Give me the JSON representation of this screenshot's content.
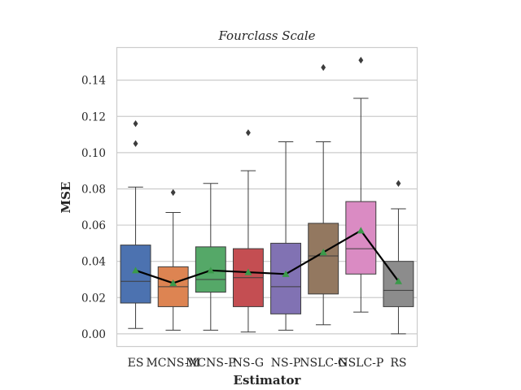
{
  "chart_data": {
    "type": "box",
    "title": "Fourclass Scale",
    "xlabel": "Estimator",
    "ylabel": "MSE",
    "ylim": [
      -0.007,
      0.158
    ],
    "yticks": [
      0.0,
      0.02,
      0.04,
      0.06,
      0.08,
      0.1,
      0.12,
      0.14
    ],
    "ytick_labels": [
      "0.00",
      "0.02",
      "0.04",
      "0.06",
      "0.08",
      "0.10",
      "0.12",
      "0.14"
    ],
    "grid": true,
    "categories": [
      "ES",
      "MCNS-M",
      "MCNS-P",
      "NS-G",
      "NS-P",
      "NSLC-G",
      "NSLC-P",
      "RS"
    ],
    "boxes": [
      {
        "label": "ES",
        "whisker_low": 0.003,
        "q1": 0.017,
        "median": 0.029,
        "q3": 0.049,
        "whisker_high": 0.081,
        "mean": 0.035,
        "outliers": [
          0.105,
          0.116
        ],
        "color": "#4c72b0"
      },
      {
        "label": "MCNS-M",
        "whisker_low": 0.002,
        "q1": 0.015,
        "median": 0.026,
        "q3": 0.037,
        "whisker_high": 0.067,
        "mean": 0.028,
        "outliers": [
          0.078
        ],
        "color": "#dd8452"
      },
      {
        "label": "MCNS-P",
        "whisker_low": 0.002,
        "q1": 0.023,
        "median": 0.03,
        "q3": 0.048,
        "whisker_high": 0.083,
        "mean": 0.035,
        "outliers": [],
        "color": "#55a868"
      },
      {
        "label": "NS-G",
        "whisker_low": 0.001,
        "q1": 0.015,
        "median": 0.031,
        "q3": 0.047,
        "whisker_high": 0.09,
        "mean": 0.034,
        "outliers": [
          0.111
        ],
        "color": "#c44e52"
      },
      {
        "label": "NS-P",
        "whisker_low": 0.002,
        "q1": 0.011,
        "median": 0.026,
        "q3": 0.05,
        "whisker_high": 0.106,
        "mean": 0.033,
        "outliers": [],
        "color": "#8172b3"
      },
      {
        "label": "NSLC-G",
        "whisker_low": 0.005,
        "q1": 0.022,
        "median": 0.043,
        "q3": 0.061,
        "whisker_high": 0.106,
        "mean": 0.045,
        "outliers": [
          0.147
        ],
        "color": "#937860"
      },
      {
        "label": "NSLC-P",
        "whisker_low": 0.012,
        "q1": 0.033,
        "median": 0.047,
        "q3": 0.073,
        "whisker_high": 0.13,
        "mean": 0.057,
        "outliers": [
          0.151
        ],
        "color": "#da8bc3"
      },
      {
        "label": "RS",
        "whisker_low": 0.0,
        "q1": 0.015,
        "median": 0.024,
        "q3": 0.04,
        "whisker_high": 0.069,
        "mean": 0.029,
        "outliers": [
          0.083
        ],
        "color": "#8c8c8c"
      }
    ],
    "mean_line_color": "#000000",
    "mean_marker_color": "#3a9a4a"
  }
}
